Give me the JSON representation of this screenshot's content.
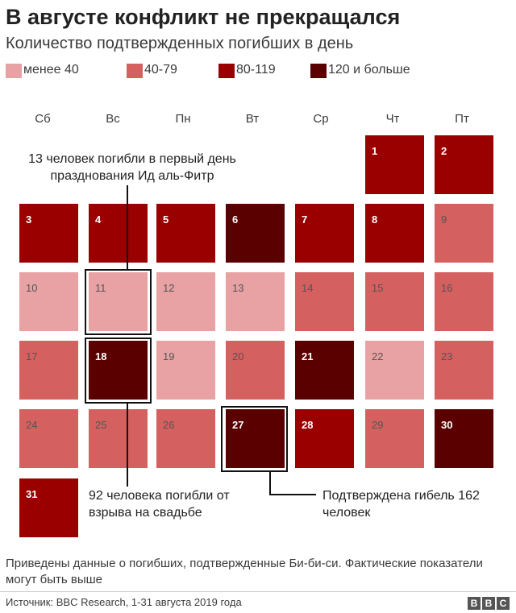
{
  "title": "В августе конфликт не прекращался",
  "subtitle": "Количество подтвержденных погибших в день",
  "legend": [
    {
      "label": "менее 40",
      "color": "#e8a2a3"
    },
    {
      "label": "40-79",
      "color": "#d4605f"
    },
    {
      "label": "80-119",
      "color": "#9b0000"
    },
    {
      "label": "120 и больше",
      "color": "#5a0000"
    }
  ],
  "weekdays": [
    "Сб",
    "Вс",
    "Пн",
    "Вт",
    "Ср",
    "Чт",
    "Пт"
  ],
  "chart_data": {
    "type": "heatmap",
    "title": "В августе конфликт не прекращался",
    "subtitle": "Количество подтвержденных погибших в день",
    "month_start_weekday": "Чт",
    "columns": [
      "Сб",
      "Вс",
      "Пн",
      "Вт",
      "Ср",
      "Чт",
      "Пт"
    ],
    "categories": [
      "менее 40",
      "40-79",
      "80-119",
      "120 и больше"
    ],
    "days": [
      {
        "day": 1,
        "category": "80-119"
      },
      {
        "day": 2,
        "category": "80-119"
      },
      {
        "day": 3,
        "category": "80-119"
      },
      {
        "day": 4,
        "category": "80-119"
      },
      {
        "day": 5,
        "category": "80-119"
      },
      {
        "day": 6,
        "category": "120 и больше"
      },
      {
        "day": 7,
        "category": "80-119"
      },
      {
        "day": 8,
        "category": "80-119"
      },
      {
        "day": 9,
        "category": "40-79"
      },
      {
        "day": 10,
        "category": "менее 40"
      },
      {
        "day": 11,
        "category": "менее 40"
      },
      {
        "day": 12,
        "category": "менее 40"
      },
      {
        "day": 13,
        "category": "менее 40"
      },
      {
        "day": 14,
        "category": "40-79"
      },
      {
        "day": 15,
        "category": "40-79"
      },
      {
        "day": 16,
        "category": "40-79"
      },
      {
        "day": 17,
        "category": "40-79"
      },
      {
        "day": 18,
        "category": "120 и больше"
      },
      {
        "day": 19,
        "category": "менее 40"
      },
      {
        "day": 20,
        "category": "40-79"
      },
      {
        "day": 21,
        "category": "120 и больше"
      },
      {
        "day": 22,
        "category": "менее 40"
      },
      {
        "day": 23,
        "category": "40-79"
      },
      {
        "day": 24,
        "category": "40-79"
      },
      {
        "day": 25,
        "category": "40-79"
      },
      {
        "day": 26,
        "category": "40-79"
      },
      {
        "day": 27,
        "category": "120 и больше"
      },
      {
        "day": 28,
        "category": "80-119"
      },
      {
        "day": 29,
        "category": "40-79"
      },
      {
        "day": 30,
        "category": "120 и больше"
      },
      {
        "day": 31,
        "category": "80-119"
      }
    ],
    "highlighted_days": [
      11,
      18,
      27
    ]
  },
  "annotations": {
    "eid": "13 человек погибли в первый день празднования Ид аль-Фитр",
    "wedding": "92 человека погибли от взрыва на свадьбе",
    "confirmed": "Подтверждена гибель 162 человек"
  },
  "footnote": "Приведены данные о погибших, подтвержденные Би-би-си. Фактические показатели могут быть выше",
  "source": "Источник: BBC Research, 1-31 августа 2019 года",
  "logo": "BBC"
}
